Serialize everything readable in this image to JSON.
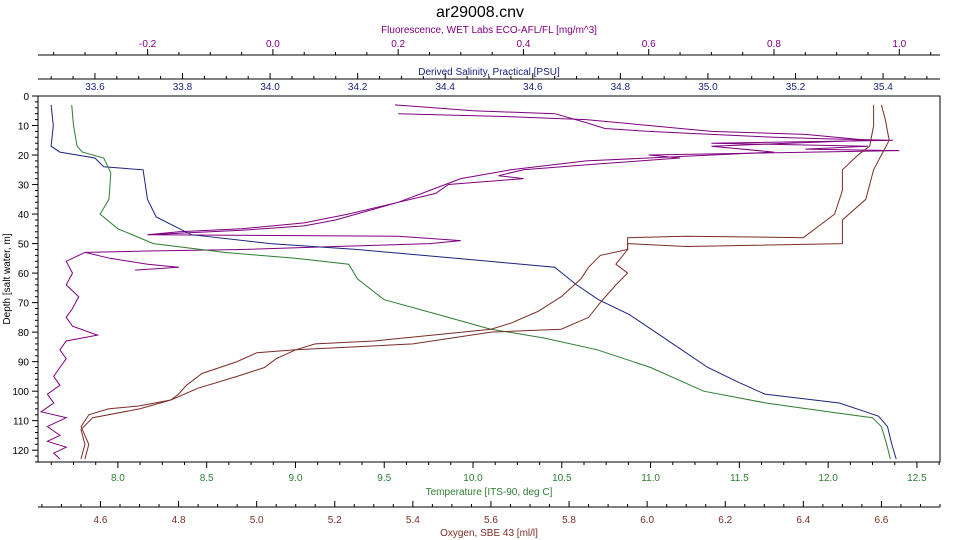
{
  "chart_data": {
    "type": "line",
    "title": "ar29008.cnv",
    "colors": {
      "fluorescence": "#800080",
      "salinity": "#1a237e",
      "temperature": "#2e7d32",
      "oxygen": "#7b2d26",
      "depth_axis": "#000000"
    },
    "grid": false,
    "legend": "none",
    "y_axis": {
      "label": "Depth [salt water, m]",
      "range": [
        0,
        124
      ],
      "inverted": true,
      "ticks": [
        0,
        10,
        20,
        30,
        40,
        50,
        60,
        70,
        80,
        90,
        100,
        110,
        120
      ]
    },
    "x_axes": [
      {
        "key": "fluorescence",
        "label": "Fluorescence, WET Labs ECO-AFL/FL [mg/m^3]",
        "range": [
          -0.375,
          1.065
        ],
        "ticks": [
          -0.2,
          0.0,
          0.2,
          0.4,
          0.6,
          0.8,
          1.0
        ],
        "tick_labels": [
          "-0.2",
          "0.0",
          "0.2",
          "0.4",
          "0.6",
          "0.8",
          "1.0"
        ]
      },
      {
        "key": "salinity",
        "label": "Derived Salinity, Practical [PSU]",
        "range": [
          33.47,
          35.53
        ],
        "ticks": [
          33.6,
          33.8,
          34.0,
          34.2,
          34.4,
          34.6,
          34.8,
          35.0,
          35.2,
          35.4
        ],
        "tick_labels": [
          "33.6",
          "33.8",
          "34.0",
          "34.2",
          "34.4",
          "34.6",
          "34.8",
          "35.0",
          "35.2",
          "35.4"
        ]
      },
      {
        "key": "temperature",
        "label": "Temperature [ITS-90, deg C]",
        "range": [
          7.55,
          12.63
        ],
        "ticks": [
          8.0,
          8.5,
          9.0,
          9.5,
          10.0,
          10.5,
          11.0,
          11.5,
          12.0,
          12.5
        ],
        "tick_labels": [
          "8.0",
          "8.5",
          "9.0",
          "9.5",
          "10.0",
          "10.5",
          "11.0",
          "11.5",
          "12.0",
          "12.5"
        ]
      },
      {
        "key": "oxygen",
        "label": "Oxygen, SBE 43 [ml/l]",
        "range": [
          4.44,
          6.75
        ],
        "ticks": [
          4.6,
          4.8,
          5.0,
          5.2,
          5.4,
          5.6,
          5.8,
          6.0,
          6.2,
          6.4,
          6.6
        ],
        "tick_labels": [
          "4.6",
          "4.8",
          "5.0",
          "5.2",
          "5.4",
          "5.6",
          "5.8",
          "6.0",
          "6.2",
          "6.4",
          "6.6"
        ]
      }
    ],
    "series": [
      {
        "key": "fluorescence",
        "x_axis": "fluorescence",
        "points": [
          [
            0.195,
            3
          ],
          [
            0.32,
            5
          ],
          [
            0.45,
            6
          ],
          [
            0.5,
            9
          ],
          [
            0.53,
            11
          ],
          [
            0.6,
            12
          ],
          [
            0.7,
            13
          ],
          [
            0.8,
            14
          ],
          [
            0.88,
            14.5
          ],
          [
            0.99,
            15
          ],
          [
            0.7,
            16
          ],
          [
            0.95,
            17
          ],
          [
            0.85,
            18
          ],
          [
            1.0,
            18.5
          ],
          [
            0.6,
            20
          ],
          [
            0.65,
            21
          ],
          [
            0.52,
            23
          ],
          [
            0.4,
            25
          ],
          [
            0.36,
            27
          ],
          [
            0.4,
            28
          ],
          [
            0.28,
            30
          ],
          [
            0.26,
            33
          ],
          [
            0.2,
            36
          ],
          [
            0.15,
            39
          ],
          [
            0.1,
            42
          ],
          [
            0.05,
            44
          ],
          [
            -0.05,
            45.5
          ],
          [
            -0.15,
            46.5
          ],
          [
            -0.2,
            47
          ],
          [
            0.2,
            47.5
          ],
          [
            0.3,
            49
          ],
          [
            0.25,
            50
          ],
          [
            0.1,
            51
          ],
          [
            -0.05,
            52
          ],
          [
            -0.2,
            52.5
          ],
          [
            -0.3,
            53
          ],
          [
            -0.26,
            55
          ],
          [
            -0.2,
            57
          ],
          [
            -0.15,
            58
          ],
          [
            -0.22,
            59
          ]
        ]
      },
      {
        "key": "fluorescence-dark",
        "x_axis": "fluorescence",
        "points": [
          [
            0.2,
            6
          ],
          [
            0.38,
            7
          ],
          [
            0.5,
            8
          ],
          [
            0.6,
            10
          ],
          [
            0.7,
            12
          ],
          [
            0.85,
            13
          ],
          [
            0.95,
            15
          ],
          [
            0.7,
            17
          ],
          [
            0.8,
            19
          ],
          [
            0.5,
            22
          ],
          [
            0.38,
            25
          ],
          [
            0.3,
            28
          ],
          [
            0.25,
            32
          ],
          [
            0.2,
            36
          ],
          [
            0.12,
            40
          ],
          [
            0.05,
            43
          ],
          [
            -0.05,
            45
          ],
          [
            -0.15,
            46
          ],
          [
            -0.2,
            47
          ]
        ]
      },
      {
        "key": "fluorescence-deep",
        "x_axis": "fluorescence",
        "points": [
          [
            -0.3,
            53
          ],
          [
            -0.33,
            56
          ],
          [
            -0.32,
            60
          ],
          [
            -0.33,
            64
          ],
          [
            -0.31,
            68
          ],
          [
            -0.32,
            72
          ],
          [
            -0.33,
            75
          ],
          [
            -0.32,
            78
          ],
          [
            -0.28,
            81
          ],
          [
            -0.33,
            83
          ],
          [
            -0.34,
            86
          ],
          [
            -0.33,
            89
          ],
          [
            -0.34,
            92
          ],
          [
            -0.35,
            95
          ],
          [
            -0.34,
            98
          ],
          [
            -0.36,
            101
          ],
          [
            -0.35,
            104
          ],
          [
            -0.37,
            107
          ],
          [
            -0.33,
            109
          ],
          [
            -0.36,
            112
          ],
          [
            -0.34,
            115
          ],
          [
            -0.36,
            117
          ],
          [
            -0.33,
            119
          ],
          [
            -0.35,
            121
          ],
          [
            -0.34,
            123
          ]
        ]
      },
      {
        "key": "salinity",
        "x_axis": "salinity",
        "points": [
          [
            33.5,
            3
          ],
          [
            33.505,
            10
          ],
          [
            33.5,
            17
          ],
          [
            33.52,
            19
          ],
          [
            33.6,
            21
          ],
          [
            33.62,
            24
          ],
          [
            33.71,
            25
          ],
          [
            33.72,
            35
          ],
          [
            33.74,
            41
          ],
          [
            33.82,
            47
          ],
          [
            34.0,
            50
          ],
          [
            34.2,
            52
          ],
          [
            34.35,
            54
          ],
          [
            34.5,
            56
          ],
          [
            34.65,
            58
          ],
          [
            34.7,
            64
          ],
          [
            34.75,
            69
          ],
          [
            34.82,
            74
          ],
          [
            34.88,
            80
          ],
          [
            34.94,
            86
          ],
          [
            35.0,
            92
          ],
          [
            35.07,
            97
          ],
          [
            35.13,
            101
          ],
          [
            35.3,
            104
          ],
          [
            35.36,
            107
          ],
          [
            35.39,
            108.5
          ],
          [
            35.41,
            112
          ],
          [
            35.42,
            118
          ],
          [
            35.43,
            123
          ]
        ]
      },
      {
        "key": "temperature",
        "x_axis": "temperature",
        "points": [
          [
            7.74,
            3
          ],
          [
            7.75,
            10
          ],
          [
            7.77,
            17
          ],
          [
            7.8,
            19
          ],
          [
            7.92,
            21
          ],
          [
            7.96,
            26
          ],
          [
            7.95,
            35
          ],
          [
            7.9,
            40
          ],
          [
            8.0,
            45
          ],
          [
            8.2,
            50
          ],
          [
            8.6,
            53
          ],
          [
            9.0,
            55
          ],
          [
            9.3,
            57
          ],
          [
            9.35,
            62
          ],
          [
            9.5,
            69
          ],
          [
            9.8,
            74
          ],
          [
            10.1,
            79
          ],
          [
            10.4,
            82
          ],
          [
            10.7,
            86
          ],
          [
            11.0,
            92
          ],
          [
            11.3,
            100
          ],
          [
            11.65,
            104
          ],
          [
            12.0,
            107
          ],
          [
            12.25,
            109
          ],
          [
            12.3,
            112
          ],
          [
            12.33,
            118
          ],
          [
            12.35,
            123
          ]
        ]
      },
      {
        "key": "oxygen-upcast",
        "x_axis": "oxygen",
        "points": [
          [
            6.6,
            3
          ],
          [
            6.61,
            8
          ],
          [
            6.62,
            15
          ],
          [
            6.6,
            20
          ],
          [
            6.58,
            25
          ],
          [
            6.56,
            35
          ],
          [
            6.5,
            42
          ],
          [
            6.5,
            50
          ],
          [
            6.1,
            51
          ],
          [
            5.95,
            50
          ],
          [
            5.95,
            52
          ],
          [
            5.92,
            57
          ],
          [
            5.95,
            60
          ],
          [
            5.92,
            64
          ],
          [
            5.88,
            70
          ],
          [
            5.85,
            75
          ],
          [
            5.78,
            79
          ],
          [
            5.6,
            80
          ],
          [
            5.5,
            82
          ],
          [
            5.4,
            84
          ],
          [
            5.25,
            85
          ],
          [
            5.1,
            86
          ],
          [
            5.0,
            87
          ],
          [
            4.95,
            90
          ],
          [
            4.86,
            94
          ],
          [
            4.82,
            98
          ],
          [
            4.8,
            101
          ],
          [
            4.78,
            103
          ],
          [
            4.7,
            105
          ],
          [
            4.62,
            106
          ],
          [
            4.57,
            108
          ],
          [
            4.55,
            112
          ],
          [
            4.57,
            118
          ],
          [
            4.56,
            123
          ]
        ]
      },
      {
        "key": "oxygen-downcast",
        "x_axis": "oxygen",
        "points": [
          [
            6.58,
            3
          ],
          [
            6.58,
            10
          ],
          [
            6.57,
            17
          ],
          [
            6.54,
            20
          ],
          [
            6.5,
            25
          ],
          [
            6.5,
            32
          ],
          [
            6.48,
            40
          ],
          [
            6.44,
            44
          ],
          [
            6.4,
            48
          ],
          [
            6.1,
            47.5
          ],
          [
            5.95,
            48
          ],
          [
            5.95,
            50
          ],
          [
            5.95,
            52
          ],
          [
            5.88,
            54
          ],
          [
            5.85,
            58
          ],
          [
            5.83,
            62
          ],
          [
            5.78,
            68
          ],
          [
            5.72,
            73
          ],
          [
            5.65,
            77
          ],
          [
            5.6,
            79
          ],
          [
            5.45,
            81
          ],
          [
            5.3,
            83
          ],
          [
            5.15,
            84
          ],
          [
            5.1,
            86
          ],
          [
            5.05,
            89
          ],
          [
            5.02,
            92
          ],
          [
            4.95,
            95
          ],
          [
            4.85,
            99
          ],
          [
            4.78,
            103
          ],
          [
            4.7,
            106
          ],
          [
            4.58,
            109
          ],
          [
            4.55,
            113
          ],
          [
            4.56,
            118
          ],
          [
            4.55,
            123
          ]
        ]
      }
    ]
  }
}
